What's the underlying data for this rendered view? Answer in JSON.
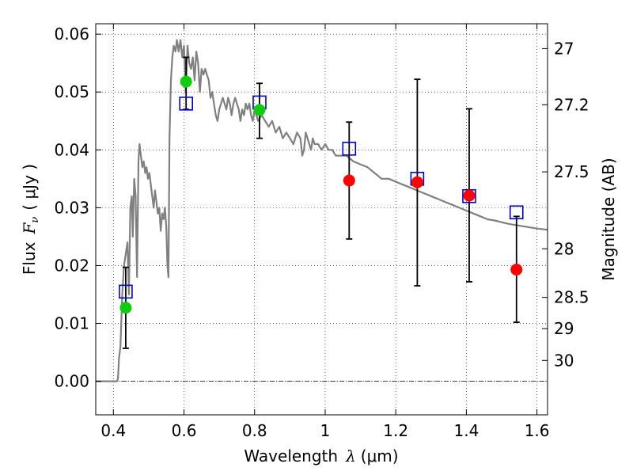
{
  "chart_data": {
    "type": "scatter",
    "xlabel_prefix": "Wavelength",
    "xlabel_symbol": "λ",
    "xlabel_unit": "(μm)",
    "ylabel_prefix": "Flux",
    "ylabel_symbol": "F",
    "ylabel_symbol_sub": "ν",
    "ylabel_unit": "( μJy )",
    "y2label": "Magnitude (AB)",
    "xlim": [
      0.35,
      1.63
    ],
    "ylim": [
      -0.0058,
      0.0618
    ],
    "grid": true,
    "x_ticks": [
      0.4,
      0.6,
      0.8,
      1.0,
      1.2,
      1.4,
      1.6
    ],
    "x_tick_labels": [
      "0.4",
      "0.6",
      "0.8",
      "1",
      "1.2",
      "1.4",
      "1.6"
    ],
    "y_ticks": [
      0.0,
      0.01,
      0.02,
      0.03,
      0.04,
      0.05,
      0.06
    ],
    "y_tick_labels": [
      "0.00",
      "0.01",
      "0.02",
      "0.03",
      "0.04",
      "0.05",
      "0.06"
    ],
    "magnitude_ticks": [
      {
        "label": "27",
        "flux": 0.0575
      },
      {
        "label": "27.2",
        "flux": 0.0478
      },
      {
        "label": "27.5",
        "flux": 0.0362
      },
      {
        "label": "28",
        "flux": 0.0229
      },
      {
        "label": "28.5",
        "flux": 0.0145
      },
      {
        "label": "29",
        "flux": 0.0091
      },
      {
        "label": "30",
        "flux": 0.0036
      }
    ],
    "model_sed": {
      "color": "#808080",
      "points": [
        [
          0.35,
          0.0
        ],
        [
          0.41,
          0.0
        ],
        [
          0.413,
          0.0005
        ],
        [
          0.416,
          0.004
        ],
        [
          0.42,
          0.006
        ],
        [
          0.425,
          0.015
        ],
        [
          0.43,
          0.02
        ],
        [
          0.435,
          0.022
        ],
        [
          0.44,
          0.024
        ],
        [
          0.444,
          0.015
        ],
        [
          0.448,
          0.03
        ],
        [
          0.452,
          0.032
        ],
        [
          0.455,
          0.025
        ],
        [
          0.459,
          0.035
        ],
        [
          0.463,
          0.032
        ],
        [
          0.467,
          0.018
        ],
        [
          0.471,
          0.038
        ],
        [
          0.474,
          0.041
        ],
        [
          0.478,
          0.039
        ],
        [
          0.482,
          0.037
        ],
        [
          0.486,
          0.038
        ],
        [
          0.49,
          0.036
        ],
        [
          0.494,
          0.037
        ],
        [
          0.498,
          0.035
        ],
        [
          0.502,
          0.036
        ],
        [
          0.506,
          0.034
        ],
        [
          0.51,
          0.032
        ],
        [
          0.514,
          0.03
        ],
        [
          0.518,
          0.033
        ],
        [
          0.522,
          0.031
        ],
        [
          0.526,
          0.029
        ],
        [
          0.53,
          0.03
        ],
        [
          0.534,
          0.026
        ],
        [
          0.538,
          0.029
        ],
        [
          0.542,
          0.028
        ],
        [
          0.546,
          0.03
        ],
        [
          0.55,
          0.0265
        ],
        [
          0.553,
          0.02
        ],
        [
          0.556,
          0.018
        ],
        [
          0.559,
          0.042
        ],
        [
          0.563,
          0.052
        ],
        [
          0.567,
          0.056
        ],
        [
          0.571,
          0.058
        ],
        [
          0.576,
          0.057
        ],
        [
          0.58,
          0.059
        ],
        [
          0.585,
          0.057
        ],
        [
          0.59,
          0.059
        ],
        [
          0.595,
          0.056
        ],
        [
          0.6,
          0.058
        ],
        [
          0.605,
          0.05
        ],
        [
          0.61,
          0.058
        ],
        [
          0.615,
          0.055
        ],
        [
          0.62,
          0.054
        ],
        [
          0.625,
          0.056
        ],
        [
          0.63,
          0.052
        ],
        [
          0.635,
          0.057
        ],
        [
          0.64,
          0.055
        ],
        [
          0.645,
          0.05
        ],
        [
          0.65,
          0.054
        ],
        [
          0.655,
          0.053
        ],
        [
          0.66,
          0.054
        ],
        [
          0.665,
          0.053
        ],
        [
          0.67,
          0.052
        ],
        [
          0.675,
          0.049
        ],
        [
          0.68,
          0.05
        ],
        [
          0.685,
          0.048
        ],
        [
          0.69,
          0.046
        ],
        [
          0.695,
          0.045
        ],
        [
          0.7,
          0.047
        ],
        [
          0.705,
          0.048
        ],
        [
          0.71,
          0.049
        ],
        [
          0.715,
          0.048
        ],
        [
          0.72,
          0.047
        ],
        [
          0.725,
          0.049
        ],
        [
          0.73,
          0.048
        ],
        [
          0.735,
          0.046
        ],
        [
          0.74,
          0.048
        ],
        [
          0.745,
          0.049
        ],
        [
          0.75,
          0.048
        ],
        [
          0.755,
          0.047
        ],
        [
          0.76,
          0.045
        ],
        [
          0.765,
          0.047
        ],
        [
          0.77,
          0.046
        ],
        [
          0.775,
          0.048
        ],
        [
          0.78,
          0.047
        ],
        [
          0.785,
          0.048
        ],
        [
          0.79,
          0.046
        ],
        [
          0.795,
          0.045
        ],
        [
          0.8,
          0.047
        ],
        [
          0.81,
          0.045
        ],
        [
          0.82,
          0.046
        ],
        [
          0.83,
          0.045
        ],
        [
          0.84,
          0.044
        ],
        [
          0.85,
          0.045
        ],
        [
          0.86,
          0.043
        ],
        [
          0.87,
          0.044
        ],
        [
          0.88,
          0.042
        ],
        [
          0.89,
          0.043
        ],
        [
          0.9,
          0.042
        ],
        [
          0.91,
          0.041
        ],
        [
          0.92,
          0.043
        ],
        [
          0.93,
          0.042
        ],
        [
          0.935,
          0.039
        ],
        [
          0.94,
          0.04
        ],
        [
          0.945,
          0.043
        ],
        [
          0.95,
          0.042
        ],
        [
          0.955,
          0.041
        ],
        [
          0.96,
          0.04
        ],
        [
          0.965,
          0.042
        ],
        [
          0.97,
          0.041
        ],
        [
          0.98,
          0.041
        ],
        [
          0.99,
          0.04
        ],
        [
          1.0,
          0.041
        ],
        [
          1.01,
          0.04
        ],
        [
          1.02,
          0.04
        ],
        [
          1.03,
          0.039
        ],
        [
          1.04,
          0.039
        ],
        [
          1.05,
          0.039
        ],
        [
          1.06,
          0.039
        ],
        [
          1.08,
          0.038
        ],
        [
          1.1,
          0.0375
        ],
        [
          1.12,
          0.037
        ],
        [
          1.14,
          0.036
        ],
        [
          1.16,
          0.035
        ],
        [
          1.18,
          0.035
        ],
        [
          1.2,
          0.0345
        ],
        [
          1.22,
          0.034
        ],
        [
          1.24,
          0.0335
        ],
        [
          1.26,
          0.033
        ],
        [
          1.28,
          0.0325
        ],
        [
          1.3,
          0.032
        ],
        [
          1.32,
          0.0315
        ],
        [
          1.34,
          0.031
        ],
        [
          1.36,
          0.0305
        ],
        [
          1.38,
          0.03
        ],
        [
          1.4,
          0.0295
        ],
        [
          1.42,
          0.029
        ],
        [
          1.44,
          0.0285
        ],
        [
          1.46,
          0.028
        ],
        [
          1.48,
          0.0278
        ],
        [
          1.5,
          0.0275
        ],
        [
          1.52,
          0.0272
        ],
        [
          1.54,
          0.027
        ],
        [
          1.56,
          0.0268
        ],
        [
          1.58,
          0.0266
        ],
        [
          1.6,
          0.0264
        ],
        [
          1.63,
          0.0262
        ]
      ]
    },
    "model_squares": {
      "color": "#0000cc",
      "points": [
        {
          "x": 0.435,
          "y": 0.0155
        },
        {
          "x": 0.606,
          "y": 0.048
        },
        {
          "x": 0.814,
          "y": 0.0482
        },
        {
          "x": 1.068,
          "y": 0.0402
        },
        {
          "x": 1.261,
          "y": 0.035
        },
        {
          "x": 1.408,
          "y": 0.032
        },
        {
          "x": 1.542,
          "y": 0.0292
        }
      ]
    },
    "observed_green": {
      "color": "#11cc11",
      "points": [
        {
          "x": 0.435,
          "y": 0.0127,
          "ylow": 0.0057,
          "yhigh": 0.0197
        },
        {
          "x": 0.606,
          "y": 0.0518,
          "ylow": 0.047,
          "yhigh": 0.056
        },
        {
          "x": 0.814,
          "y": 0.0469,
          "ylow": 0.042,
          "yhigh": 0.0515
        }
      ]
    },
    "observed_red": {
      "color": "#ff0000",
      "points": [
        {
          "x": 1.068,
          "y": 0.0347,
          "ylow": 0.0246,
          "yhigh": 0.0448
        },
        {
          "x": 1.261,
          "y": 0.0344,
          "ylow": 0.0165,
          "yhigh": 0.0522
        },
        {
          "x": 1.408,
          "y": 0.0321,
          "ylow": 0.0172,
          "yhigh": 0.0471
        },
        {
          "x": 1.542,
          "y": 0.0193,
          "ylow": 0.0102,
          "yhigh": 0.0285
        }
      ]
    },
    "zero_line": {
      "y": 0.0
    }
  }
}
